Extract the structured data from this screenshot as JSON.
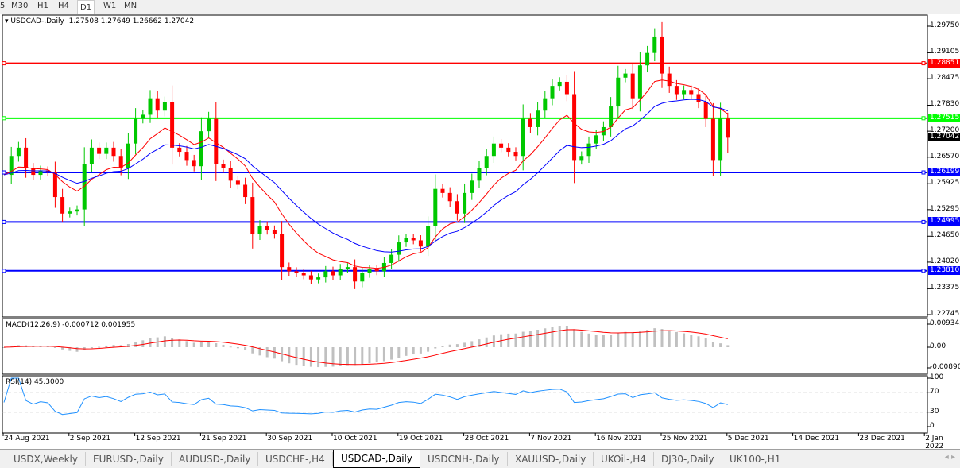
{
  "toolbar": {
    "timeframes": [
      "5",
      "M30",
      "H1",
      "H4",
      "D1",
      "W1",
      "MN"
    ],
    "active": "D1"
  },
  "chart_title": "USDCAD-,Daily",
  "ohlc": "1.27508 1.27649 1.26662 1.27042",
  "macd_label": "MACD(12,26,9) -0.000712 0.001955",
  "rsi_label": "RSI(14) 45.3000",
  "colors": {
    "bull": "#00c800",
    "bear": "#ff0000",
    "ma_fast": "#ff0000",
    "ma_slow": "#0000ff",
    "macd_hist": "#c0c0c0",
    "macd_signal": "#ff0000",
    "rsi": "#1e90ff"
  },
  "chart_data": {
    "type": "candlestick",
    "price_ticks": [
      "1.29750",
      "1.29105",
      "1.28475",
      "1.27830",
      "1.27200",
      "1.26570",
      "1.25925",
      "1.25295",
      "1.24650",
      "1.24020",
      "1.23375",
      "1.22745"
    ],
    "ylim": [
      1.22745,
      1.2975
    ],
    "current_price": "1.27042",
    "last_candle": {
      "open": 1.27508,
      "high": 1.27649,
      "low": 1.26662,
      "close": 1.27042
    },
    "closes": [
      1.2614,
      1.266,
      1.268,
      1.263,
      1.2614,
      1.2625,
      1.262,
      1.256,
      1.252,
      1.2525,
      1.253,
      1.264,
      1.268,
      1.2665,
      1.268,
      1.266,
      1.263,
      1.269,
      1.275,
      1.276,
      1.28,
      1.277,
      1.279,
      1.268,
      1.267,
      1.265,
      1.2635,
      1.272,
      1.275,
      1.264,
      1.263,
      1.26,
      1.259,
      1.256,
      1.247,
      1.249,
      1.248,
      1.247,
      1.239,
      1.238,
      1.2375,
      1.237,
      1.236,
      1.2365,
      1.238,
      1.237,
      1.2385,
      1.239,
      1.2355,
      1.2375,
      1.2385,
      1.238,
      1.24,
      1.242,
      1.245,
      1.246,
      1.2455,
      1.244,
      1.249,
      1.258,
      1.257,
      1.255,
      1.252,
      1.257,
      1.26,
      1.263,
      1.266,
      1.269,
      1.268,
      1.267,
      1.266,
      1.275,
      1.273,
      1.277,
      1.28,
      1.283,
      1.284,
      1.281,
      1.265,
      1.266,
      1.269,
      1.271,
      1.273,
      1.278,
      1.285,
      1.286,
      1.28,
      1.288,
      1.291,
      1.295,
      1.286,
      1.283,
      1.281,
      1.282,
      1.281,
      1.279,
      1.275,
      1.265,
      1.27508,
      1.27042
    ],
    "hlines": [
      {
        "price": "1.28851",
        "color": "#ff0000"
      },
      {
        "price": "1.27515",
        "color": "#00ff00"
      },
      {
        "price": "1.26199",
        "color": "#0000ff"
      },
      {
        "price": "1.24995",
        "color": "#0000ff"
      },
      {
        "price": "1.23810",
        "color": "#0000ff"
      }
    ],
    "macd_ticks": [
      "0.009345",
      "0.00",
      "-0.008902"
    ],
    "rsi_ticks": [
      "100",
      "70",
      "30",
      "0"
    ],
    "date_labels": [
      "24 Aug 2021",
      "2 Sep 2021",
      "12 Sep 2021",
      "21 Sep 2021",
      "30 Sep 2021",
      "10 Oct 2021",
      "19 Oct 2021",
      "28 Oct 2021",
      "7 Nov 2021",
      "16 Nov 2021",
      "25 Nov 2021",
      "5 Dec 2021",
      "14 Dec 2021",
      "23 Dec 2021",
      "2 Jan 2022"
    ]
  },
  "tabs": [
    "USDX,Weekly",
    "EURUSD-,Daily",
    "AUDUSD-,Daily",
    "USDCHF-,H4",
    "USDCAD-,Daily",
    "USDCNH-,Daily",
    "XAUUSD-,Daily",
    "UKOil-,H4",
    "DJ30-,Daily",
    "UK100-,H1"
  ],
  "active_tab": "USDCAD-,Daily"
}
